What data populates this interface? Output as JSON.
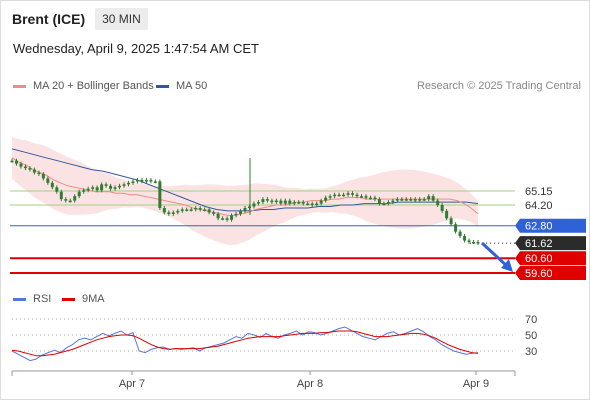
{
  "header": {
    "instrument": "Brent (ICE)",
    "timeframe": "30 MIN"
  },
  "timestamp": "Wednesday, April 9, 2025 1:47:54 AM CET",
  "legend": {
    "ma20": "MA 20 + Bollinger Bands",
    "ma50": "MA 50",
    "rsi": "RSI",
    "ma9": "9MA",
    "credit": "Research © 2025 Trading Central"
  },
  "colors": {
    "ma20": "#f08a8a",
    "ma50": "#34579b",
    "band": "#fcdede",
    "resistance": "#2f62d8",
    "support": "#e00000",
    "pivot_lines": "#9fd07f",
    "rsi": "#5577dd",
    "rsi_ma": "#e00000",
    "candle": "#2e7d32"
  },
  "chart_data": {
    "type": "line",
    "price_levels": [
      {
        "value": 65.15,
        "label": "65.15",
        "kind": "pivot"
      },
      {
        "value": 64.2,
        "label": "64.20",
        "kind": "pivot"
      },
      {
        "value": 62.8,
        "label": "62.80",
        "kind": "resistance"
      },
      {
        "value": 61.62,
        "label": "61.62",
        "kind": "last"
      },
      {
        "value": 60.6,
        "label": "60.60",
        "kind": "support"
      },
      {
        "value": 59.6,
        "label": "59.60",
        "kind": "support"
      }
    ],
    "close": [
      67.2,
      67.0,
      66.8,
      66.7,
      66.6,
      66.4,
      66.3,
      66.0,
      65.7,
      65.4,
      65.1,
      64.6,
      64.5,
      64.5,
      64.8,
      65.1,
      65.2,
      65.3,
      65.4,
      65.2,
      65.6,
      65.5,
      65.3,
      65.4,
      65.5,
      65.6,
      65.7,
      65.8,
      65.9,
      65.8,
      65.9,
      65.8,
      65.8,
      64.0,
      63.7,
      63.6,
      63.7,
      63.8,
      63.9,
      63.9,
      63.9,
      64.0,
      63.9,
      63.9,
      63.7,
      63.6,
      63.3,
      63.3,
      63.2,
      63.5,
      63.6,
      63.8,
      64.0,
      64.1,
      64.3,
      64.4,
      64.6,
      64.5,
      64.4,
      64.5,
      64.3,
      64.5,
      64.3,
      64.4,
      64.4,
      64.3,
      64.3,
      64.2,
      64.3,
      64.5,
      64.7,
      64.8,
      64.9,
      64.9,
      64.9,
      65.0,
      64.9,
      64.8,
      64.8,
      64.7,
      64.7,
      64.6,
      64.3,
      64.3,
      64.4,
      64.5,
      64.6,
      64.6,
      64.6,
      64.6,
      64.5,
      64.6,
      64.6,
      64.8,
      64.5,
      64.2,
      63.8,
      63.3,
      62.9,
      62.4,
      62.1,
      61.8,
      61.7,
      61.7,
      61.62
    ],
    "ma20": [
      67.4,
      67.1,
      66.9,
      66.6,
      66.4,
      66.2,
      65.9,
      65.7,
      65.5,
      65.4,
      65.3,
      65.2,
      65.1,
      65.1,
      65.1,
      65.0,
      65.0,
      64.9,
      64.9,
      64.8,
      64.7,
      64.6,
      64.5,
      64.4,
      64.3,
      64.2,
      64.0,
      63.9,
      63.8,
      63.7,
      63.6,
      63.5,
      63.5,
      63.6,
      63.7,
      63.9,
      64.0,
      64.1,
      64.2,
      64.2,
      64.3,
      64.4,
      64.4,
      64.5,
      64.5,
      64.5,
      64.6,
      64.6,
      64.7,
      64.7,
      64.7,
      64.6,
      64.6,
      64.6,
      64.6,
      64.6,
      64.6,
      64.6,
      64.6,
      64.6,
      64.6,
      64.6,
      64.6,
      64.6,
      64.5,
      64.3,
      64.0,
      63.6
    ],
    "ma50": [
      68.0,
      67.8,
      67.6,
      67.4,
      67.2,
      67.0,
      66.8,
      66.6,
      66.5,
      66.3,
      66.1,
      65.9,
      65.6,
      65.3,
      65.0,
      64.7,
      64.4,
      64.1,
      63.9,
      63.8,
      63.8,
      63.8,
      63.9,
      63.9,
      64.0,
      64.0,
      64.0,
      64.1,
      64.1,
      64.2,
      64.2,
      64.3,
      64.3,
      64.3,
      64.4,
      64.4,
      64.4,
      64.4,
      64.4,
      64.4,
      64.4,
      64.3
    ],
    "rsi": [
      30,
      26,
      22,
      18,
      20,
      25,
      28,
      31,
      28,
      34,
      38,
      44,
      46,
      44,
      48,
      52,
      49,
      52,
      55,
      50,
      53,
      30,
      28,
      32,
      34,
      35,
      32,
      33,
      32,
      33,
      34,
      30,
      34,
      36,
      38,
      40,
      44,
      48,
      46,
      52,
      50,
      47,
      52,
      48,
      46,
      50,
      52,
      55,
      50,
      54,
      53,
      50,
      52,
      55,
      58,
      60,
      56,
      52,
      48,
      46,
      44,
      48,
      52,
      54,
      50,
      52,
      55,
      58,
      54,
      48,
      44,
      38,
      34,
      30,
      28,
      26,
      27,
      28
    ],
    "rsi_ma": [
      31,
      30,
      28,
      26,
      24,
      24,
      25,
      26,
      28,
      30,
      32,
      35,
      38,
      41,
      44,
      46,
      48,
      49,
      50,
      50,
      49,
      46,
      42,
      38,
      35,
      33,
      32,
      33,
      33,
      33,
      33,
      33,
      34,
      35,
      36,
      38,
      40,
      42,
      44,
      46,
      47,
      48,
      48,
      48,
      48,
      49,
      50,
      51,
      52,
      52,
      52,
      53,
      53,
      54,
      55,
      55,
      55,
      54,
      52,
      50,
      48,
      48,
      48,
      49,
      50,
      51,
      52,
      52,
      51,
      49,
      46,
      42,
      38,
      35,
      32,
      30,
      28,
      27
    ],
    "rsi_levels": [
      70,
      50,
      30
    ],
    "y_range": [
      59.0,
      68.0
    ],
    "x_ticks": [
      "Apr 7",
      "Apr 8",
      "Apr 9"
    ]
  }
}
